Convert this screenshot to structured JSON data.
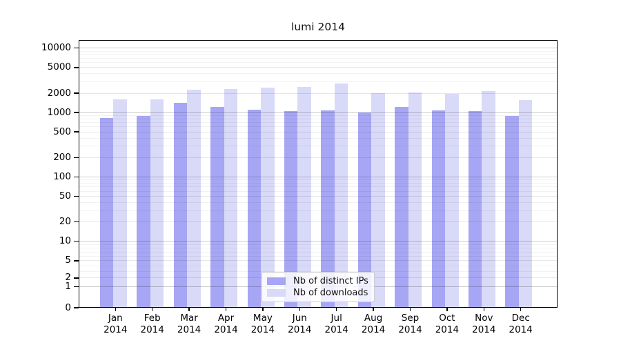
{
  "chart_data": {
    "type": "bar",
    "title": "lumi 2014",
    "categories": [
      "Jan 2014",
      "Feb 2014",
      "Mar 2014",
      "Apr 2014",
      "May 2014",
      "Jun 2014",
      "Jul 2014",
      "Aug 2014",
      "Sep 2014",
      "Oct 2014",
      "Nov 2014",
      "Dec 2014"
    ],
    "series": [
      {
        "name": "Nb of distinct IPs",
        "color": "#a6a6f4",
        "values": [
          830,
          880,
          1430,
          1230,
          1120,
          1060,
          1080,
          1010,
          1230,
          1080,
          1060,
          890
        ]
      },
      {
        "name": "Nb of downloads",
        "color": "#d9d9f8",
        "values": [
          1610,
          1620,
          2280,
          2340,
          2420,
          2480,
          2800,
          2000,
          2040,
          1930,
          2170,
          1560
        ]
      }
    ],
    "yticks": [
      0,
      1,
      2,
      5,
      10,
      20,
      50,
      100,
      200,
      500,
      1000,
      2000,
      5000,
      10000
    ],
    "y_scale": "log (with 0 baseline shown)",
    "ylim": [
      0,
      12400
    ],
    "grid": true,
    "legend_position": "lower center",
    "y_grid": {
      "major": [
        1,
        10,
        100,
        1000,
        10000
      ],
      "medium": [
        2,
        5,
        20,
        50,
        200,
        500,
        2000,
        5000
      ],
      "minor": [
        3,
        4,
        6,
        7,
        8,
        9,
        30,
        40,
        60,
        70,
        80,
        90,
        300,
        400,
        600,
        700,
        800,
        900,
        3000,
        4000,
        6000,
        7000,
        8000,
        9000
      ]
    },
    "axis_color": "#000000",
    "tick_label_color": "#000000"
  }
}
